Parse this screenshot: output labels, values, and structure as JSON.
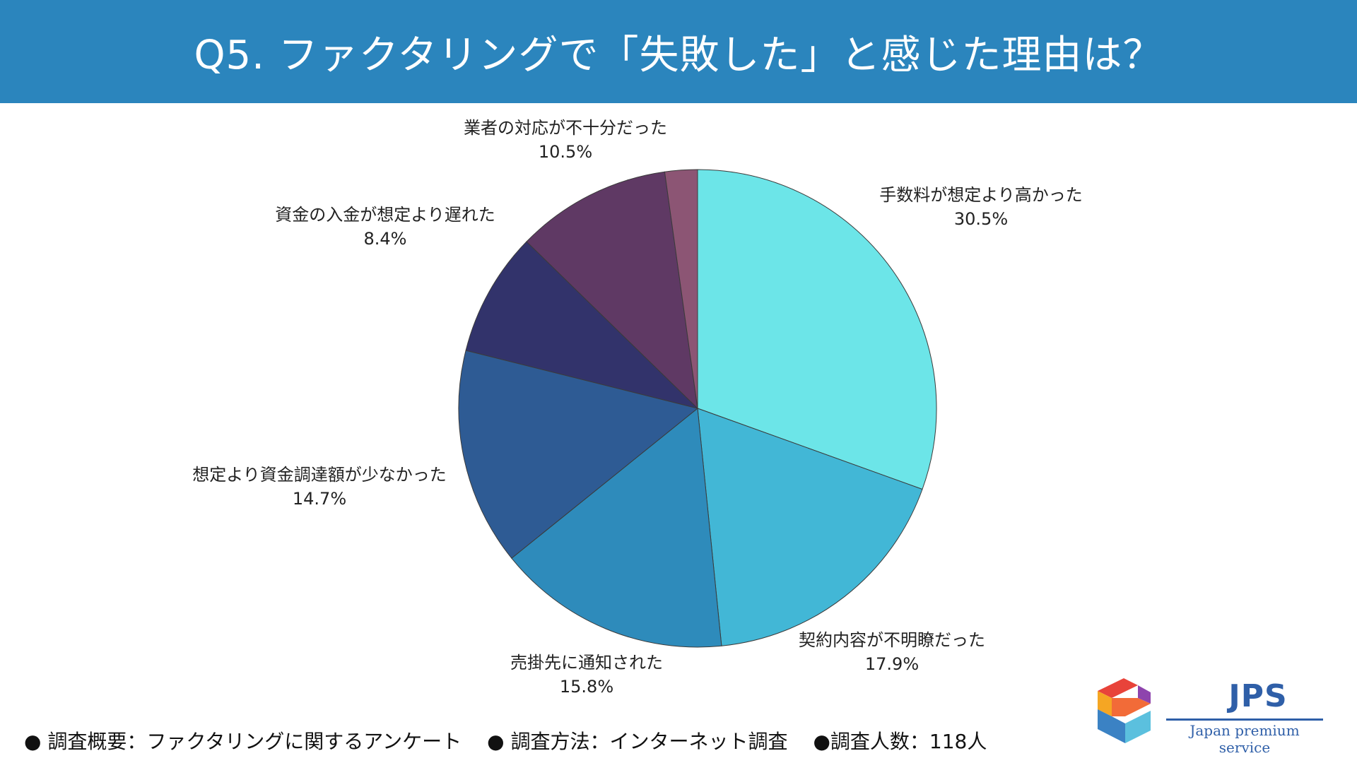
{
  "header": {
    "title": "Q5. ファクタリングで「失敗した」と感じた理由は？"
  },
  "chart_data": {
    "type": "pie",
    "start": "top, clockwise",
    "slices": [
      {
        "label": "手数料が想定より高かった",
        "value": 30.5,
        "value_label": "30.5%",
        "color": "#6ce5e8"
      },
      {
        "label": "契約内容が不明瞭だった",
        "value": 17.9,
        "value_label": "17.9%",
        "color": "#42b7d6"
      },
      {
        "label": "売掛先に通知された",
        "value": 15.8,
        "value_label": "15.8%",
        "color": "#2e8bbb"
      },
      {
        "label": "想定より資金調達額が少なかった",
        "value": 14.7,
        "value_label": "14.7%",
        "color": "#2e5b94"
      },
      {
        "label": "資金の入金が想定より遅れた",
        "value": 8.4,
        "value_label": "8.4%",
        "color": "#32336b"
      },
      {
        "label": "業者の対応が不十分だった",
        "value": 10.5,
        "value_label": "10.5%",
        "color": "#5f3964"
      },
      {
        "label": "",
        "value": 2.2,
        "value_label": "",
        "color": "#8c5574"
      }
    ]
  },
  "footer": {
    "items": [
      "● 調査概要：ファクタリングに関するアンケート",
      "● 調査方法：インターネット調査",
      "●調査人数：118人"
    ]
  },
  "logo": {
    "title": "JPS",
    "subtitle": "Japan premium service",
    "colors": [
      "#e8433a",
      "#f5a623",
      "#8e44ad",
      "#3b82c4",
      "#5bc0de",
      "#f26b38"
    ]
  }
}
